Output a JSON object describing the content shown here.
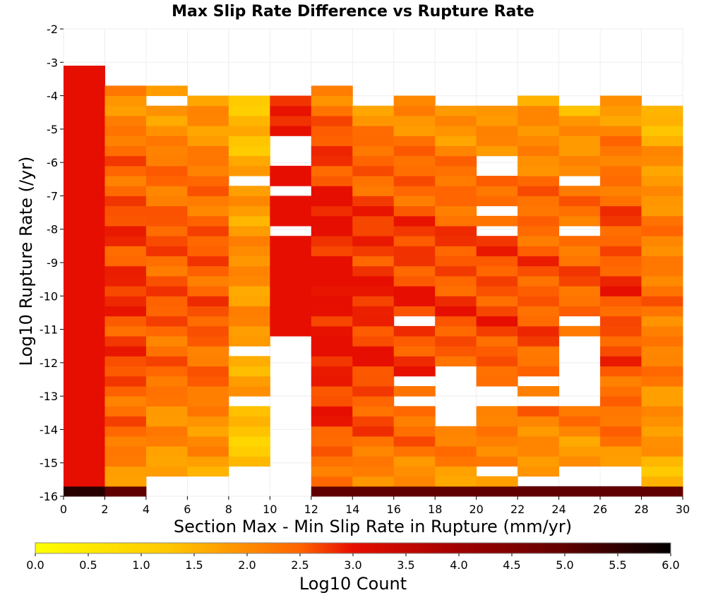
{
  "chart_data": {
    "type": "heatmap",
    "title": "Max Slip Rate Difference vs Rupture Rate",
    "xlabel": "Section Max - Min Slip Rate in Rupture (mm/yr)",
    "ylabel": "Log10 Rupture Rate (/yr)",
    "xlim": [
      0,
      30
    ],
    "ylim": [
      -16,
      -2
    ],
    "x_ticks": [
      "0",
      "2",
      "4",
      "6",
      "8",
      "10",
      "12",
      "14",
      "16",
      "18",
      "20",
      "22",
      "24",
      "26",
      "28",
      "30"
    ],
    "y_ticks": [
      "-16",
      "-15",
      "-14",
      "-13",
      "-12",
      "-11",
      "-10",
      "-9",
      "-8",
      "-7",
      "-6",
      "-5",
      "-4",
      "-3",
      "-2"
    ],
    "x_bin_width": 2,
    "y_bin_height": 0.3,
    "y_bin_start": -16,
    "colorbar": {
      "label": "Log10 Count",
      "min": 0,
      "max": 6,
      "ticks": [
        "0.0",
        "0.5",
        "1.0",
        "1.5",
        "2.0",
        "2.5",
        "3.0",
        "3.5",
        "4.0",
        "4.5",
        "5.0",
        "5.5",
        "6.0"
      ],
      "stops": [
        {
          "v": 0.0,
          "c": "#ffff00"
        },
        {
          "v": 1.25,
          "c": "#ffc800"
        },
        {
          "v": 2.5,
          "c": "#ff6400"
        },
        {
          "v": 3.0,
          "c": "#e60e00"
        },
        {
          "v": 4.0,
          "c": "#a00000"
        },
        {
          "v": 5.0,
          "c": "#600000"
        },
        {
          "v": 6.0,
          "c": "#000000"
        }
      ]
    },
    "columns": [
      {
        "x0": 0,
        "base": 5.2,
        "min": -16,
        "max": -3.0
      },
      {
        "x0": 2,
        "base": 2.3,
        "min": -16,
        "max": -3.6
      },
      {
        "x0": 4,
        "base": 2.1,
        "min": -15.3,
        "max": -3.6,
        "gaps": [
          [
            -4.2,
            -3.9
          ]
        ]
      },
      {
        "x0": 6,
        "base": 2.1,
        "min": -15.3,
        "max": -3.9
      },
      {
        "x0": 8,
        "base": 1.5,
        "min": -15.0,
        "max": -3.9,
        "gaps": [
          [
            -6.6,
            -6.3
          ],
          [
            -11.9,
            -11.6
          ],
          [
            -13.2,
            -12.9
          ]
        ]
      },
      {
        "x0": 10,
        "base": 3.1,
        "min": -16,
        "max": -3.9,
        "gaps": [
          [
            -6.0,
            -5.3
          ],
          [
            -7.0,
            -6.7
          ],
          [
            -8.3,
            -8.0
          ],
          [
            -11.1,
            -16.0
          ]
        ]
      },
      {
        "x0": 12,
        "base": 2.6,
        "min": -16,
        "max": -3.6
      },
      {
        "x0": 14,
        "base": 2.4,
        "min": -16,
        "max": -4.2
      },
      {
        "x0": 16,
        "base": 2.3,
        "min": -16,
        "max": -3.9,
        "gaps": [
          [
            -10.8,
            -10.5
          ],
          [
            -12.8,
            -12.5
          ],
          [
            -13.3,
            -13.1
          ]
        ]
      },
      {
        "x0": 18,
        "base": 2.2,
        "min": -16,
        "max": -4.2,
        "gaps": [
          [
            -12.0,
            -14.0
          ]
        ]
      },
      {
        "x0": 20,
        "base": 2.2,
        "min": -16,
        "max": -4.2,
        "gaps": [
          [
            -5.7,
            -6.5
          ],
          [
            -7.4,
            -7.7
          ],
          [
            -8.0,
            -8.2
          ],
          [
            -11.1,
            -11.3
          ],
          [
            -12.0,
            -12.2
          ],
          [
            -12.8,
            -13.3
          ],
          [
            -15.0,
            -15.3
          ]
        ]
      },
      {
        "x0": 22,
        "base": 2.1,
        "min": -16,
        "max": -3.9,
        "gaps": [
          [
            -12.5,
            -12.8
          ],
          [
            -13.1,
            -13.3
          ],
          [
            -15.3,
            -15.6
          ]
        ]
      },
      {
        "x0": 24,
        "base": 2.0,
        "min": -16,
        "max": -4.2,
        "gaps": [
          [
            -6.4,
            -6.7
          ],
          [
            -8.0,
            -8.2
          ],
          [
            -10.5,
            -10.8
          ],
          [
            -11.3,
            -13.3
          ],
          [
            -15.0,
            -15.6
          ]
        ]
      },
      {
        "x0": 26,
        "base": 2.2,
        "min": -16,
        "max": -3.9,
        "gaps": [
          [
            -15.0,
            -15.6
          ]
        ]
      },
      {
        "x0": 28,
        "base": 1.8,
        "min": -16,
        "max": -4.2
      }
    ]
  }
}
